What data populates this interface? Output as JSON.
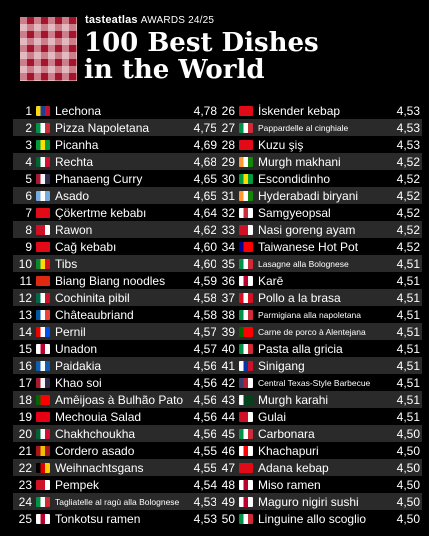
{
  "brand": {
    "name": "tasteatlas",
    "badge": "AWARDS 24/25"
  },
  "title": {
    "line1": "100 Best Dishes",
    "line2": "in the World"
  },
  "dishes_left": [
    {
      "rank": "1",
      "name": "Lechona",
      "score": "4,78",
      "flag": "colombia-flag",
      "colors": [
        "#f9d616",
        "#1b3e97",
        "#c8102e"
      ]
    },
    {
      "rank": "2",
      "name": "Pizza Napoletana",
      "score": "4,75",
      "flag": "italy-flag",
      "colors": [
        "#009246",
        "#ffffff",
        "#ce2b37"
      ]
    },
    {
      "rank": "3",
      "name": "Picanha",
      "score": "4,69",
      "flag": "brazil-flag",
      "colors": [
        "#009c3b",
        "#ffdf00",
        "#009c3b"
      ]
    },
    {
      "rank": "4",
      "name": "Rechta",
      "score": "4,68",
      "flag": "algeria-flag",
      "colors": [
        "#006233",
        "#ffffff",
        "#d21034"
      ]
    },
    {
      "rank": "5",
      "name": "Phanaeng Curry",
      "score": "4,65",
      "flag": "thailand-flag",
      "colors": [
        "#a51931",
        "#f4f5f8",
        "#2d2a4a"
      ]
    },
    {
      "rank": "6",
      "name": "Asado",
      "score": "4,65",
      "flag": "argentina-flag",
      "colors": [
        "#74acdf",
        "#ffffff",
        "#74acdf"
      ]
    },
    {
      "rank": "7",
      "name": "Çökertme kebabı",
      "score": "4,64",
      "flag": "turkey-flag",
      "colors": [
        "#e30a17",
        "#e30a17",
        "#e30a17"
      ]
    },
    {
      "rank": "8",
      "name": "Rawon",
      "score": "4,62",
      "flag": "indonesia-flag",
      "colors": [
        "#ce1126",
        "#ce1126",
        "#ffffff"
      ]
    },
    {
      "rank": "9",
      "name": "Cağ kebabı",
      "score": "4,60",
      "flag": "turkey-flag",
      "colors": [
        "#e30a17",
        "#e30a17",
        "#e30a17"
      ]
    },
    {
      "rank": "10",
      "name": "Tibs",
      "score": "4,60",
      "flag": "ethiopia-flag",
      "colors": [
        "#078930",
        "#fcdd09",
        "#da121a"
      ]
    },
    {
      "rank": "11",
      "name": "Biang Biang noodles",
      "score": "4,59",
      "flag": "china-flag",
      "colors": [
        "#de2910",
        "#de2910",
        "#de2910"
      ]
    },
    {
      "rank": "12",
      "name": "Cochinita pibil",
      "score": "4,58",
      "flag": "mexico-flag",
      "colors": [
        "#006847",
        "#ffffff",
        "#ce1126"
      ]
    },
    {
      "rank": "13",
      "name": "Châteaubriand",
      "score": "4,58",
      "flag": "france-flag",
      "colors": [
        "#0055a4",
        "#ffffff",
        "#ef4135"
      ]
    },
    {
      "rank": "14",
      "name": "Pernil",
      "score": "4,57",
      "flag": "puerto-rico-flag",
      "colors": [
        "#ed0000",
        "#ffffff",
        "#0050f0"
      ]
    },
    {
      "rank": "15",
      "name": "Unadon",
      "score": "4,57",
      "flag": "japan-flag",
      "colors": [
        "#ffffff",
        "#bc002d",
        "#ffffff"
      ]
    },
    {
      "rank": "16",
      "name": "Paidakia",
      "score": "4,56",
      "flag": "greece-flag",
      "colors": [
        "#0d5eaf",
        "#ffffff",
        "#0d5eaf"
      ]
    },
    {
      "rank": "17",
      "name": "Khao soi",
      "score": "4,56",
      "flag": "thailand-flag",
      "colors": [
        "#a51931",
        "#f4f5f8",
        "#2d2a4a"
      ]
    },
    {
      "rank": "18",
      "name": "Amêijoas à Bulhão Pato",
      "score": "4,56",
      "flag": "portugal-flag",
      "colors": [
        "#006600",
        "#ff0000",
        "#ff0000"
      ],
      "small": false
    },
    {
      "rank": "19",
      "name": "Mechouia Salad",
      "score": "4,56",
      "flag": "tunisia-flag",
      "colors": [
        "#e70013",
        "#e70013",
        "#e70013"
      ]
    },
    {
      "rank": "20",
      "name": "Chakhchoukha",
      "score": "4,56",
      "flag": "algeria-flag",
      "colors": [
        "#006233",
        "#ffffff",
        "#d21034"
      ]
    },
    {
      "rank": "21",
      "name": "Cordero asado",
      "score": "4,55",
      "flag": "spain-flag",
      "colors": [
        "#aa151b",
        "#f1bf00",
        "#aa151b"
      ]
    },
    {
      "rank": "22",
      "name": "Weihnachtsgans",
      "score": "4,55",
      "flag": "germany-flag",
      "colors": [
        "#000000",
        "#dd0000",
        "#ffce00"
      ]
    },
    {
      "rank": "23",
      "name": "Pempek",
      "score": "4,54",
      "flag": "indonesia-flag",
      "colors": [
        "#ce1126",
        "#ce1126",
        "#ffffff"
      ]
    },
    {
      "rank": "24",
      "name": "Tagliatelle al ragù alla Bolognese",
      "score": "4,53",
      "flag": "italy-flag",
      "colors": [
        "#009246",
        "#ffffff",
        "#ce2b37"
      ],
      "small": true
    },
    {
      "rank": "25",
      "name": "Tonkotsu ramen",
      "score": "4,53",
      "flag": "japan-flag",
      "colors": [
        "#ffffff",
        "#bc002d",
        "#ffffff"
      ]
    }
  ],
  "dishes_right": [
    {
      "rank": "26",
      "name": "İskender kebap",
      "score": "4,53",
      "flag": "turkey-flag",
      "colors": [
        "#e30a17",
        "#e30a17",
        "#e30a17"
      ]
    },
    {
      "rank": "27",
      "name": "Pappardelle al cinghiale",
      "score": "4,53",
      "flag": "italy-flag",
      "colors": [
        "#009246",
        "#ffffff",
        "#ce2b37"
      ],
      "small": true
    },
    {
      "rank": "28",
      "name": "Kuzu şiş",
      "score": "4,53",
      "flag": "turkey-flag",
      "colors": [
        "#e30a17",
        "#e30a17",
        "#e30a17"
      ]
    },
    {
      "rank": "29",
      "name": "Murgh makhani",
      "score": "4,52",
      "flag": "india-flag",
      "colors": [
        "#ff9933",
        "#ffffff",
        "#138808"
      ]
    },
    {
      "rank": "30",
      "name": "Escondidinho",
      "score": "4,52",
      "flag": "brazil-flag",
      "colors": [
        "#009c3b",
        "#ffdf00",
        "#009c3b"
      ]
    },
    {
      "rank": "31",
      "name": "Hyderabadi biryani",
      "score": "4,52",
      "flag": "india-flag",
      "colors": [
        "#ff9933",
        "#ffffff",
        "#138808"
      ]
    },
    {
      "rank": "32",
      "name": "Samgyeopsal",
      "score": "4,52",
      "flag": "south-korea-flag",
      "colors": [
        "#ffffff",
        "#cd2e3a",
        "#ffffff"
      ]
    },
    {
      "rank": "33",
      "name": "Nasi goreng ayam",
      "score": "4,52",
      "flag": "indonesia-flag",
      "colors": [
        "#ce1126",
        "#ce1126",
        "#ffffff"
      ]
    },
    {
      "rank": "34",
      "name": "Taiwanese Hot Pot",
      "score": "4,52",
      "flag": "taiwan-flag",
      "colors": [
        "#000095",
        "#fe0000",
        "#fe0000"
      ]
    },
    {
      "rank": "35",
      "name": "Lasagne alla Bolognese",
      "score": "4,51",
      "flag": "italy-flag",
      "colors": [
        "#009246",
        "#ffffff",
        "#ce2b37"
      ],
      "small": true
    },
    {
      "rank": "36",
      "name": "Karē",
      "score": "4,51",
      "flag": "japan-flag",
      "colors": [
        "#ffffff",
        "#bc002d",
        "#ffffff"
      ]
    },
    {
      "rank": "37",
      "name": "Pollo a la brasa",
      "score": "4,51",
      "flag": "peru-flag",
      "colors": [
        "#d91023",
        "#ffffff",
        "#d91023"
      ]
    },
    {
      "rank": "38",
      "name": "Parmigiana alla napoletana",
      "score": "4,51",
      "flag": "italy-flag",
      "colors": [
        "#009246",
        "#ffffff",
        "#ce2b37"
      ],
      "small": true
    },
    {
      "rank": "39",
      "name": "Carne de porco à Alentejana",
      "score": "4,51",
      "flag": "portugal-flag",
      "colors": [
        "#006600",
        "#ff0000",
        "#ff0000"
      ],
      "small": true
    },
    {
      "rank": "40",
      "name": "Pasta alla gricia",
      "score": "4,51",
      "flag": "italy-flag",
      "colors": [
        "#009246",
        "#ffffff",
        "#ce2b37"
      ]
    },
    {
      "rank": "41",
      "name": "Sinigang",
      "score": "4,51",
      "flag": "philippines-flag",
      "colors": [
        "#ffffff",
        "#0038a8",
        "#ce1126"
      ]
    },
    {
      "rank": "42",
      "name": "Central Texas-Style Barbecue",
      "score": "4,51",
      "flag": "usa-flag",
      "colors": [
        "#3c3b6e",
        "#b22234",
        "#ffffff"
      ],
      "small": true
    },
    {
      "rank": "43",
      "name": "Murgh karahi",
      "score": "4,51",
      "flag": "pakistan-flag",
      "colors": [
        "#ffffff",
        "#01411c",
        "#01411c"
      ]
    },
    {
      "rank": "44",
      "name": "Gulai",
      "score": "4,51",
      "flag": "indonesia-flag",
      "colors": [
        "#ce1126",
        "#ce1126",
        "#ffffff"
      ]
    },
    {
      "rank": "45",
      "name": "Carbonara",
      "score": "4,50",
      "flag": "italy-flag",
      "colors": [
        "#009246",
        "#ffffff",
        "#ce2b37"
      ]
    },
    {
      "rank": "46",
      "name": "Khachapuri",
      "score": "4,50",
      "flag": "georgia-flag",
      "colors": [
        "#ffffff",
        "#ff0000",
        "#ffffff"
      ]
    },
    {
      "rank": "47",
      "name": "Adana kebap",
      "score": "4,50",
      "flag": "turkey-flag",
      "colors": [
        "#e30a17",
        "#e30a17",
        "#e30a17"
      ]
    },
    {
      "rank": "48",
      "name": "Miso ramen",
      "score": "4,50",
      "flag": "japan-flag",
      "colors": [
        "#ffffff",
        "#bc002d",
        "#ffffff"
      ]
    },
    {
      "rank": "49",
      "name": "Maguro nigiri sushi",
      "score": "4,50",
      "flag": "japan-flag",
      "colors": [
        "#ffffff",
        "#bc002d",
        "#ffffff"
      ]
    },
    {
      "rank": "50",
      "name": "Linguine allo scoglio",
      "score": "4,50",
      "flag": "italy-flag",
      "colors": [
        "#009246",
        "#ffffff",
        "#ce2b37"
      ]
    }
  ]
}
